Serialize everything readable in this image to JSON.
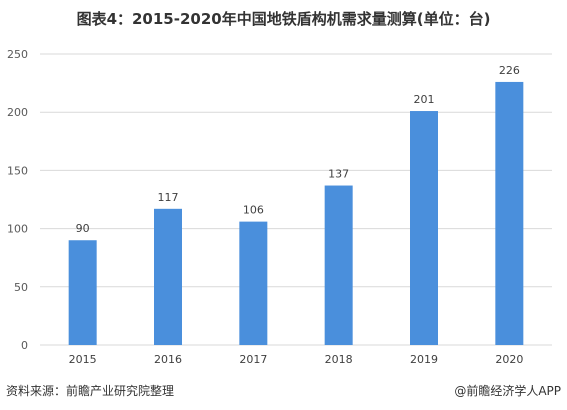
{
  "title": "图表4：2015-2020年中国地铁盾构机需求量测算(单位：台)",
  "chart_data": {
    "type": "bar",
    "categories": [
      "2015",
      "2016",
      "2017",
      "2018",
      "2019",
      "2020"
    ],
    "values": [
      90,
      117,
      106,
      137,
      201,
      226
    ],
    "ylim": [
      0,
      250
    ],
    "yticks": [
      0,
      50,
      100,
      150,
      200,
      250
    ],
    "bar_color": "#4a8fdc",
    "grid": true
  },
  "footer": {
    "source": "资料来源：前瞻产业研究院整理",
    "brand": "@前瞻经济学人APP"
  }
}
